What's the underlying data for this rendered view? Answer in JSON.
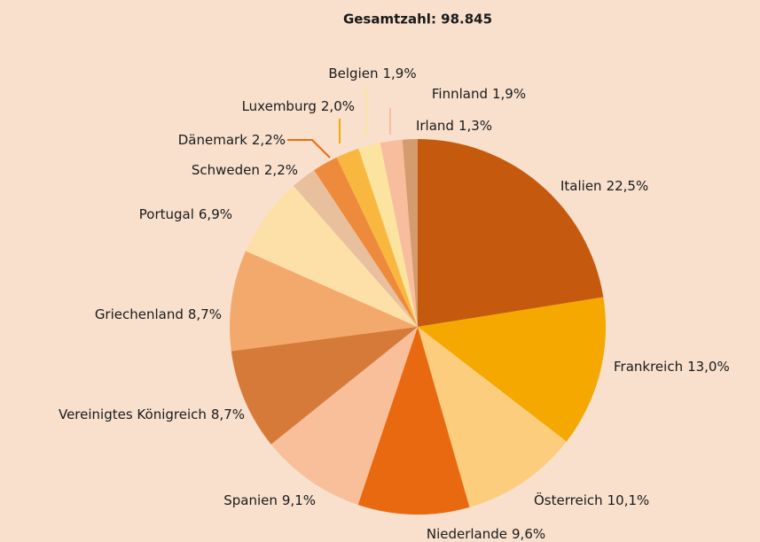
{
  "chart_data": {
    "type": "pie",
    "title": "Gesamtzahl: 98.845",
    "categories": [
      "Italien",
      "Frankreich",
      "Österreich",
      "Niederlande",
      "Spanien",
      "Vereinigtes Königreich",
      "Griechenland",
      "Portugal",
      "Schweden",
      "Dänemark",
      "Luxemburg",
      "Belgien",
      "Finnland",
      "Irland"
    ],
    "values": [
      22.5,
      13.0,
      10.1,
      9.6,
      9.1,
      8.7,
      8.7,
      6.9,
      2.2,
      2.2,
      2.0,
      1.9,
      1.9,
      1.3
    ],
    "value_labels": [
      "22,5%",
      "13,0%",
      "10,1%",
      "9,6%",
      "9,1%",
      "8,7%",
      "8,7%",
      "6,9%",
      "2,2%",
      "2,2%",
      "2,0%",
      "1,9%",
      "1,9%",
      "1,3%"
    ],
    "colors": [
      "#c55a0e",
      "#f5a800",
      "#fdcd7e",
      "#e8690f",
      "#f8bf9a",
      "#d57a38",
      "#f4a96c",
      "#fde0a8",
      "#e8c09e",
      "#ee8a3c",
      "#f8b840",
      "#fde3a0",
      "#f7bd9c",
      "#d39b6e"
    ]
  }
}
